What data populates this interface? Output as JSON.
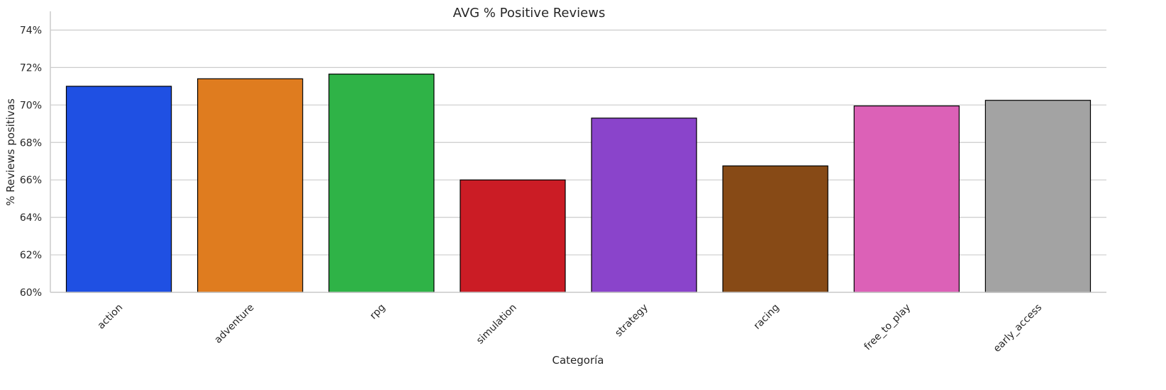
{
  "chart_data": {
    "type": "bar",
    "title": "AVG % Positive Reviews",
    "xlabel": "Categoría",
    "ylabel": "% Reviews positivas",
    "categories": [
      "action",
      "adventure",
      "rpg",
      "simulation",
      "strategy",
      "racing",
      "free_to_play",
      "early_access"
    ],
    "values": [
      71.0,
      71.4,
      71.65,
      66.0,
      69.3,
      66.75,
      69.95,
      70.25
    ],
    "colors": [
      "#1f50e3",
      "#df7c1f",
      "#2fb347",
      "#cb1c25",
      "#8a44cb",
      "#874a16",
      "#dc61b7",
      "#a3a3a3"
    ],
    "ylim": [
      60,
      75
    ],
    "yticks": [
      60,
      62,
      64,
      66,
      68,
      70,
      72,
      74
    ],
    "ytick_labels": [
      "60%",
      "62%",
      "64%",
      "66%",
      "68%",
      "70%",
      "72%",
      "74%"
    ],
    "grid": "horizontal",
    "legend": "none"
  }
}
